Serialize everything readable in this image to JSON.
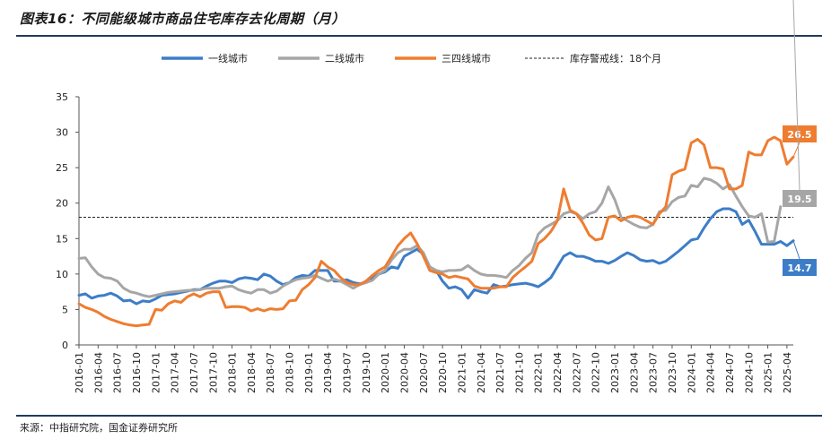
{
  "header": {
    "title": "图表16：不同能级城市商品住宅库存去化周期（月）"
  },
  "footer": {
    "source": "来源：中指研究院，国金证券研究所"
  },
  "colors": {
    "tier1": "#3d7dc8",
    "tier2": "#a6a6a6",
    "tier34": "#ee7d31",
    "threshold": "#222222",
    "rule": "#1f3a5f"
  },
  "chart_data": {
    "type": "line",
    "title": "",
    "xlabel": "",
    "ylabel": "",
    "ylim": [
      0,
      35
    ],
    "yticks": [
      0,
      5,
      10,
      15,
      20,
      25,
      30,
      35
    ],
    "grid": false,
    "legend_position": "top",
    "xtick_labels": [
      "2016-01",
      "2016-04",
      "2016-07",
      "2016-10",
      "2017-01",
      "2017-04",
      "2017-07",
      "2017-10",
      "2018-01",
      "2018-04",
      "2018-07",
      "2018-10",
      "2019-01",
      "2019-04",
      "2019-07",
      "2019-10",
      "2020-01",
      "2020-04",
      "2020-07",
      "2020-10",
      "2021-01",
      "2021-04",
      "2021-07",
      "2021-10",
      "2022-01",
      "2022-04",
      "2022-07",
      "2022-10",
      "2023-01",
      "2023-04",
      "2023-07",
      "2023-10",
      "2024-01",
      "2024-04",
      "2024-07",
      "2024-10",
      "2025-01",
      "2025-04"
    ],
    "threshold": {
      "name": "库存警戒线：18个月",
      "value": 18
    },
    "end_labels": [
      "26.5",
      "19.5",
      "14.7"
    ],
    "series": [
      {
        "name": "一线城市",
        "color": "#3d7dc8",
        "values": [
          7.0,
          7.2,
          6.6,
          6.9,
          7.0,
          7.3,
          6.9,
          6.2,
          6.3,
          5.8,
          6.2,
          6.1,
          6.5,
          7.0,
          7.1,
          7.2,
          7.4,
          7.6,
          7.8,
          7.8,
          8.3,
          8.7,
          9.0,
          9.0,
          8.8,
          9.3,
          9.5,
          9.4,
          9.2,
          10.0,
          9.7,
          9.0,
          8.5,
          8.8,
          9.5,
          9.8,
          9.7,
          10.5,
          10.5,
          10.5,
          9.0,
          9.0,
          9.2,
          8.8,
          8.6,
          8.8,
          9.4,
          10.0,
          10.3,
          11.0,
          10.8,
          12.5,
          13.0,
          13.5,
          12.8,
          11.0,
          10.5,
          9.0,
          8.0,
          8.2,
          7.8,
          6.6,
          7.8,
          7.5,
          7.3,
          8.5,
          8.2,
          8.3,
          8.5,
          8.6,
          8.7,
          8.5,
          8.2,
          8.8,
          9.5,
          11.0,
          12.5,
          13.0,
          12.5,
          12.5,
          12.2,
          11.8,
          11.8,
          11.5,
          11.9,
          12.5,
          13.0,
          12.6,
          12.0,
          11.8,
          11.9,
          11.5,
          11.8,
          12.5,
          13.2,
          14.0,
          14.8,
          15.0,
          16.5,
          17.8,
          18.8,
          19.2,
          19.2,
          18.8,
          17.0,
          17.6,
          16.0,
          14.2,
          14.2,
          14.2,
          14.6,
          14.0,
          14.7
        ]
      },
      {
        "name": "二线城市",
        "color": "#a6a6a6",
        "values": [
          12.2,
          12.3,
          11.0,
          10.0,
          9.5,
          9.4,
          9.0,
          8.0,
          7.5,
          7.3,
          7.0,
          6.8,
          7.0,
          7.2,
          7.4,
          7.5,
          7.6,
          7.7,
          7.7,
          7.8,
          8.0,
          8.0,
          8.0,
          8.2,
          8.3,
          7.8,
          7.5,
          7.3,
          7.8,
          7.8,
          7.3,
          7.6,
          8.3,
          8.8,
          9.2,
          9.4,
          9.5,
          9.8,
          9.4,
          9.0,
          9.3,
          9.0,
          8.5,
          8.0,
          8.5,
          8.8,
          9.1,
          10.0,
          10.5,
          12.0,
          13.0,
          13.5,
          13.5,
          14.0,
          13.0,
          11.0,
          10.5,
          10.3,
          10.5,
          10.5,
          10.6,
          11.2,
          10.5,
          10.0,
          9.8,
          9.8,
          9.7,
          9.5,
          10.5,
          11.2,
          12.2,
          13.0,
          15.6,
          16.5,
          17.0,
          17.5,
          18.5,
          18.8,
          18.5,
          17.8,
          18.5,
          18.8,
          20.0,
          22.3,
          20.5,
          18.0,
          17.5,
          17.0,
          16.6,
          16.5,
          17.0,
          18.8,
          19.0,
          20.2,
          20.8,
          21.0,
          22.5,
          22.3,
          23.5,
          23.3,
          22.8,
          22.0,
          22.6,
          21.0,
          19.5,
          18.2,
          18.0,
          18.5,
          14.5,
          14.6,
          19.5
        ]
      },
      {
        "name": "三四线城市",
        "color": "#ee7d31",
        "values": [
          5.8,
          5.3,
          5.0,
          4.6,
          4.0,
          3.6,
          3.3,
          3.0,
          2.8,
          2.7,
          2.8,
          2.9,
          5.0,
          4.9,
          5.8,
          6.2,
          6.0,
          6.8,
          7.2,
          6.8,
          7.3,
          7.5,
          7.5,
          5.3,
          5.4,
          5.4,
          5.3,
          4.8,
          5.1,
          4.8,
          5.1,
          5.0,
          5.1,
          6.2,
          6.3,
          7.8,
          8.5,
          9.5,
          11.8,
          11.0,
          10.5,
          9.5,
          8.8,
          8.5,
          8.5,
          9.0,
          9.8,
          10.5,
          11.0,
          12.5,
          14.0,
          15.0,
          15.8,
          14.3,
          12.5,
          10.5,
          10.2,
          10.0,
          9.5,
          9.7,
          9.5,
          9.3,
          8.3,
          8.0,
          8.0,
          8.0,
          8.2,
          8.2,
          9.5,
          10.3,
          11.0,
          11.8,
          14.3,
          15.0,
          16.0,
          17.5,
          22.0,
          19.0,
          18.5,
          17.2,
          15.5,
          14.8,
          15.0,
          18.0,
          18.2,
          17.5,
          18.0,
          18.2,
          18.0,
          17.5,
          17.0,
          18.5,
          19.5,
          24.0,
          24.5,
          24.8,
          28.5,
          29.0,
          28.2,
          25.0,
          25.0,
          24.8,
          22.0,
          22.0,
          22.5,
          27.2,
          26.8,
          26.8,
          28.8,
          29.3,
          28.8,
          25.5,
          26.5
        ]
      }
    ]
  }
}
